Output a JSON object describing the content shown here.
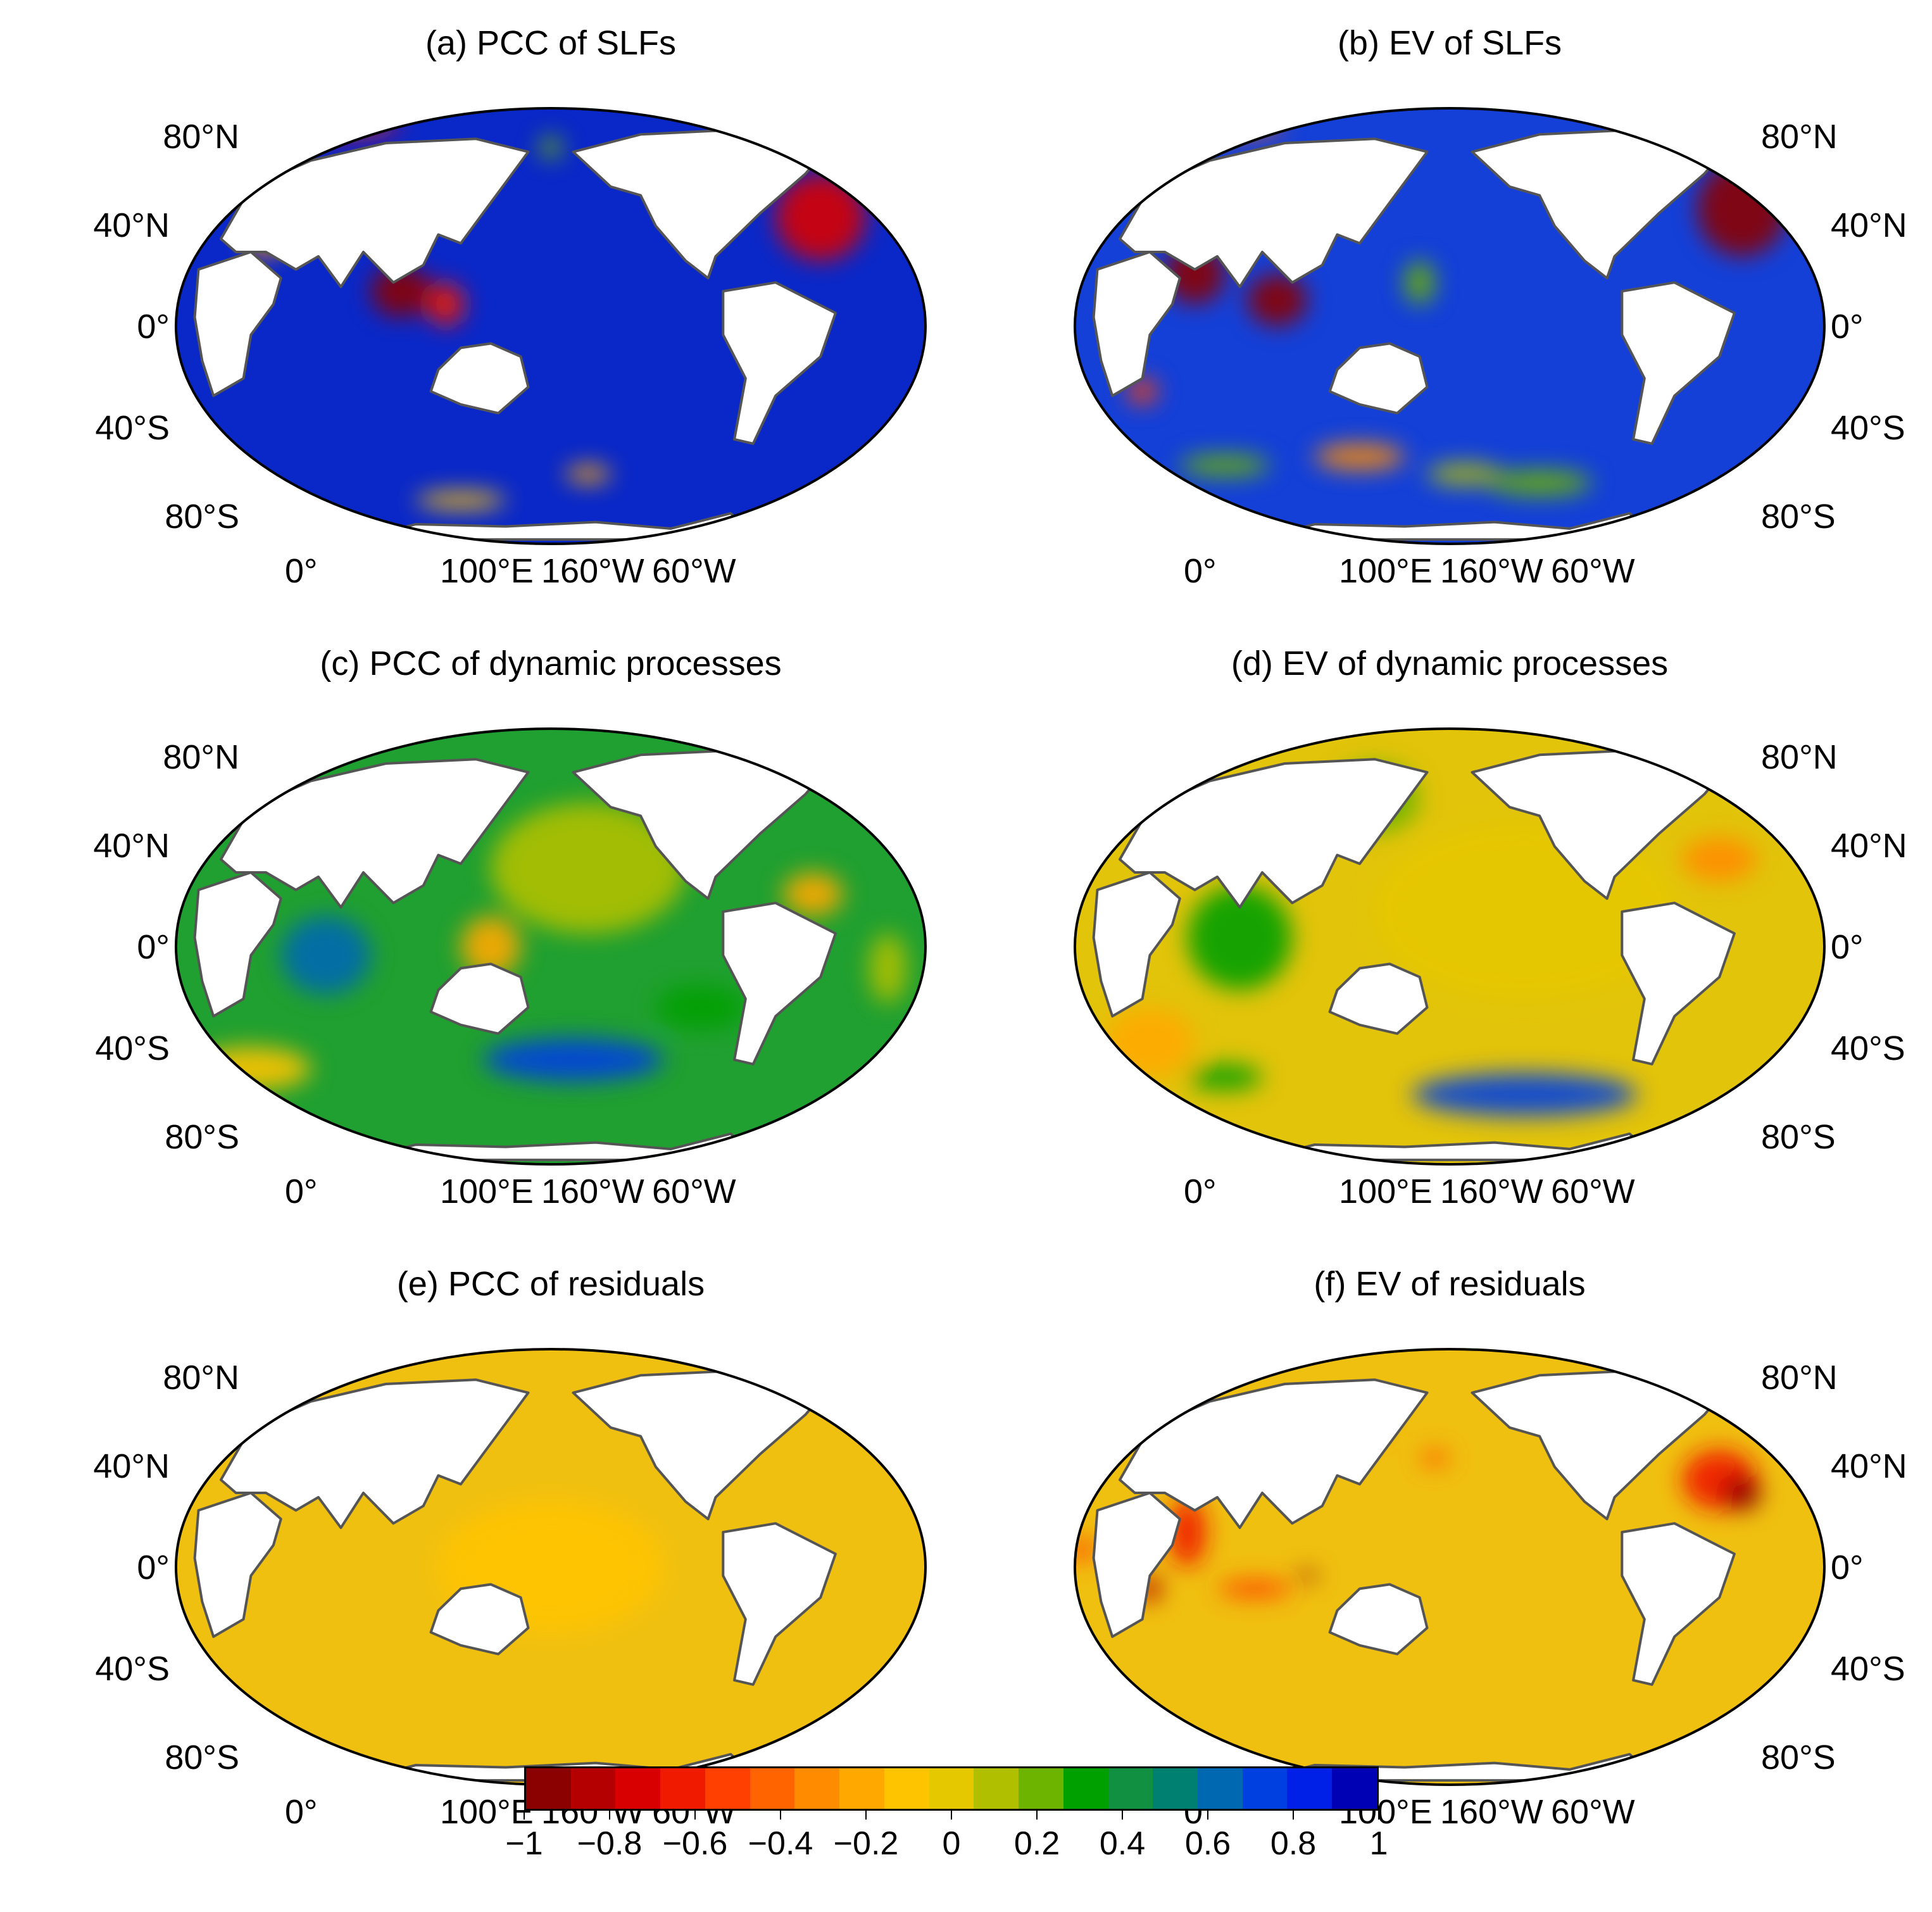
{
  "panels": [
    {
      "id": "a",
      "title": "(a) PCC of SLFs",
      "base": "#0a28c8",
      "field": "slf_pcc"
    },
    {
      "id": "b",
      "title": "(b) EV of SLFs",
      "base": "#1440d8",
      "field": "slf_ev"
    },
    {
      "id": "c",
      "title": "(c) PCC of dynamic processes",
      "base": "#20a030",
      "field": "dyn_pcc"
    },
    {
      "id": "d",
      "title": "(d) EV of dynamic processes",
      "base": "#e2c40a",
      "field": "dyn_ev"
    },
    {
      "id": "e",
      "title": "(e) PCC of residuals",
      "base": "#f0c010",
      "field": "res_pcc"
    },
    {
      "id": "f",
      "title": "(f) EV of residuals",
      "base": "#f0c010",
      "field": "res_ev"
    }
  ],
  "lat_labels": [
    "80°N",
    "40°N",
    "0°",
    "40°S",
    "80°S"
  ],
  "lon_labels": [
    "0°",
    "100°E",
    "160°W",
    "60°W"
  ],
  "colorbar": {
    "colors": [
      "#8b0000",
      "#b40000",
      "#d80000",
      "#f01a00",
      "#ff4000",
      "#ff6400",
      "#ff8c00",
      "#ffa800",
      "#ffc400",
      "#e6c800",
      "#b0c000",
      "#6cb400",
      "#00a000",
      "#109040",
      "#008070",
      "#0068b0",
      "#0040e0",
      "#0020e8",
      "#0000b4"
    ],
    "tick_values": [
      -1,
      -0.8,
      -0.6,
      -0.4,
      -0.2,
      0,
      0.2,
      0.4,
      0.6,
      0.8,
      1
    ],
    "tick_labels": [
      "−1",
      "−0.8",
      "−0.6",
      "−0.4",
      "−0.2",
      "0",
      "0.2",
      "0.4",
      "0.6",
      "0.8",
      "1"
    ]
  }
}
